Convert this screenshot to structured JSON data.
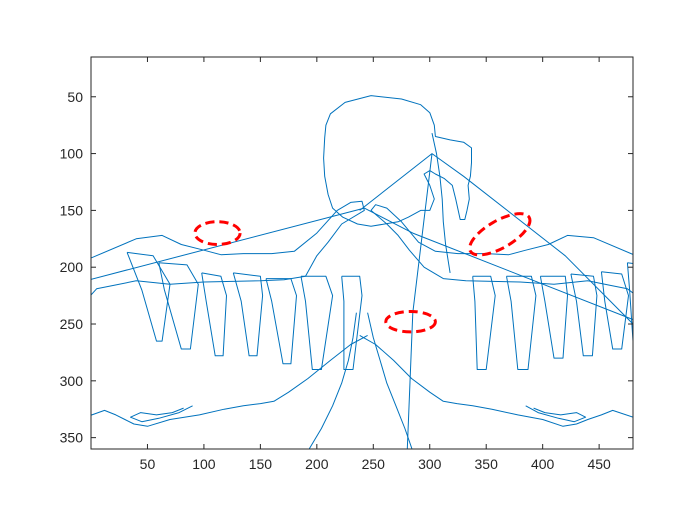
{
  "chart_data": {
    "type": "line",
    "title": "",
    "xlabel": "",
    "ylabel": "",
    "xlim": [
      0,
      480
    ],
    "ylim": [
      15,
      360
    ],
    "y_reversed": true,
    "grid": false,
    "legend": "none",
    "x_ticks": [
      50,
      100,
      150,
      200,
      250,
      300,
      350,
      400,
      450
    ],
    "y_ticks": [
      50,
      100,
      150,
      200,
      250,
      300,
      350
    ],
    "colors": {
      "contour": "#0072BD",
      "annotation": "#FF0000",
      "axis": "#262626"
    },
    "series": [
      {
        "role": "head",
        "points": [
          [
            248,
            49
          ],
          [
            275,
            52
          ],
          [
            292,
            57
          ],
          [
            300,
            64
          ],
          [
            304,
            75
          ],
          [
            305,
            85
          ],
          [
            318,
            88
          ],
          [
            330,
            90
          ],
          [
            337,
            95
          ],
          [
            337,
            108
          ],
          [
            336,
            120
          ],
          [
            334,
            128
          ],
          [
            335,
            140
          ],
          [
            333,
            150
          ],
          [
            331,
            158
          ],
          [
            327,
            158
          ],
          [
            323,
            140
          ],
          [
            320,
            128
          ],
          [
            313,
            122
          ],
          [
            305,
            118
          ],
          [
            300,
            115
          ],
          [
            295,
            118
          ],
          [
            300,
            128
          ],
          [
            304,
            140
          ],
          [
            300,
            150
          ],
          [
            292,
            150
          ],
          [
            281,
            156
          ],
          [
            272,
            160
          ],
          [
            260,
            162
          ],
          [
            248,
            164
          ],
          [
            236,
            162
          ],
          [
            223,
            156
          ],
          [
            214,
            148
          ],
          [
            210,
            136
          ],
          [
            207,
            120
          ],
          [
            206,
            104
          ],
          [
            207,
            86
          ],
          [
            208,
            75
          ],
          [
            212,
            65
          ],
          [
            225,
            55
          ],
          [
            248,
            49
          ]
        ]
      },
      {
        "role": "hair-strand",
        "points": [
          [
            302,
            82
          ],
          [
            306,
            100
          ],
          [
            309,
            120
          ],
          [
            311,
            140
          ],
          [
            312,
            160
          ],
          [
            314,
            180
          ],
          [
            318,
            205
          ]
        ]
      },
      {
        "role": "left-wing",
        "points": [
          [
            -5,
            194
          ],
          [
            40,
            175
          ],
          [
            63,
            172
          ],
          [
            80,
            180
          ],
          [
            100,
            185
          ],
          [
            115,
            189
          ],
          [
            135,
            188
          ],
          [
            160,
            188
          ],
          [
            180,
            186
          ],
          [
            200,
            170
          ],
          [
            218,
            150
          ],
          [
            230,
            143
          ],
          [
            240,
            142
          ],
          [
            242,
            150
          ],
          [
            222,
            162
          ],
          [
            210,
            178
          ],
          [
            200,
            190
          ],
          [
            190,
            208
          ],
          [
            171,
            211
          ],
          [
            150,
            212
          ],
          [
            100,
            213
          ],
          [
            70,
            215
          ],
          [
            40,
            212
          ],
          [
            20,
            216
          ],
          [
            5,
            219
          ],
          [
            -5,
            230
          ]
        ]
      },
      {
        "role": "right-wing",
        "points": [
          [
            490,
            193
          ],
          [
            445,
            174
          ],
          [
            422,
            172
          ],
          [
            405,
            180
          ],
          [
            385,
            185
          ],
          [
            370,
            189
          ],
          [
            350,
            188
          ],
          [
            325,
            188
          ],
          [
            305,
            186
          ],
          [
            290,
            178
          ],
          [
            275,
            160
          ],
          [
            262,
            148
          ],
          [
            252,
            145
          ],
          [
            248,
            150
          ],
          [
            262,
            162
          ],
          [
            272,
            172
          ],
          [
            282,
            185
          ],
          [
            295,
            200
          ],
          [
            312,
            210
          ],
          [
            332,
            212
          ],
          [
            380,
            213
          ],
          [
            410,
            215
          ],
          [
            440,
            212
          ],
          [
            460,
            216
          ],
          [
            475,
            219
          ],
          [
            490,
            230
          ]
        ]
      },
      {
        "role": "left-feather",
        "points": [
          [
            32,
            187
          ],
          [
            55,
            190
          ],
          [
            70,
            215
          ],
          [
            63,
            265
          ],
          [
            58,
            265
          ],
          [
            45,
            220
          ],
          [
            32,
            187
          ]
        ]
      },
      {
        "role": "left-feather",
        "points": [
          [
            60,
            196
          ],
          [
            85,
            198
          ],
          [
            95,
            215
          ],
          [
            88,
            272
          ],
          [
            80,
            272
          ],
          [
            65,
            220
          ],
          [
            60,
            196
          ]
        ]
      },
      {
        "role": "left-feather",
        "points": [
          [
            98,
            205
          ],
          [
            115,
            208
          ],
          [
            120,
            225
          ],
          [
            117,
            278
          ],
          [
            110,
            278
          ],
          [
            102,
            230
          ],
          [
            98,
            205
          ]
        ]
      },
      {
        "role": "left-feather",
        "points": [
          [
            126,
            205
          ],
          [
            150,
            208
          ],
          [
            152,
            225
          ],
          [
            147,
            278
          ],
          [
            140,
            278
          ],
          [
            133,
            230
          ],
          [
            126,
            205
          ]
        ]
      },
      {
        "role": "left-feather",
        "points": [
          [
            155,
            210
          ],
          [
            177,
            210
          ],
          [
            182,
            225
          ],
          [
            177,
            285
          ],
          [
            170,
            285
          ],
          [
            160,
            230
          ],
          [
            155,
            210
          ]
        ]
      },
      {
        "role": "left-feather",
        "points": [
          [
            186,
            208
          ],
          [
            208,
            208
          ],
          [
            214,
            225
          ],
          [
            204,
            290
          ],
          [
            196,
            290
          ],
          [
            190,
            230
          ],
          [
            186,
            208
          ]
        ]
      },
      {
        "role": "left-feather",
        "points": [
          [
            222,
            208
          ],
          [
            238,
            208
          ],
          [
            240,
            225
          ],
          [
            232,
            290
          ],
          [
            224,
            290
          ],
          [
            224,
            230
          ],
          [
            222,
            208
          ]
        ]
      },
      {
        "role": "right-feather",
        "points": [
          [
            338,
            208
          ],
          [
            354,
            208
          ],
          [
            358,
            225
          ],
          [
            350,
            290
          ],
          [
            342,
            290
          ],
          [
            340,
            230
          ],
          [
            338,
            208
          ]
        ]
      },
      {
        "role": "right-feather",
        "points": [
          [
            368,
            208
          ],
          [
            390,
            208
          ],
          [
            394,
            225
          ],
          [
            387,
            290
          ],
          [
            378,
            290
          ],
          [
            372,
            230
          ],
          [
            368,
            208
          ]
        ]
      },
      {
        "role": "right-feather",
        "points": [
          [
            398,
            208
          ],
          [
            420,
            208
          ],
          [
            422,
            225
          ],
          [
            418,
            280
          ],
          [
            410,
            280
          ],
          [
            402,
            230
          ],
          [
            398,
            208
          ]
        ]
      },
      {
        "role": "right-feather",
        "points": [
          [
            425,
            206
          ],
          [
            445,
            208
          ],
          [
            448,
            225
          ],
          [
            444,
            278
          ],
          [
            436,
            278
          ],
          [
            430,
            230
          ],
          [
            425,
            206
          ]
        ]
      },
      {
        "role": "right-feather",
        "points": [
          [
            452,
            204
          ],
          [
            470,
            206
          ],
          [
            476,
            225
          ],
          [
            470,
            272
          ],
          [
            462,
            272
          ],
          [
            455,
            230
          ],
          [
            452,
            204
          ]
        ]
      },
      {
        "role": "right-feather",
        "points": [
          [
            475,
            196
          ],
          [
            488,
            198
          ],
          [
            490,
            215
          ],
          [
            486,
            265
          ],
          [
            480,
            265
          ],
          [
            477,
            220
          ],
          [
            475,
            196
          ]
        ]
      },
      {
        "role": "left-arm",
        "points": [
          [
            245,
            260
          ],
          [
            230,
            268
          ],
          [
            212,
            282
          ],
          [
            192,
            298
          ],
          [
            175,
            310
          ],
          [
            162,
            318
          ],
          [
            150,
            320
          ],
          [
            135,
            322
          ],
          [
            118,
            325
          ],
          [
            96,
            330
          ],
          [
            70,
            334
          ],
          [
            50,
            340
          ],
          [
            38,
            338
          ],
          [
            30,
            334
          ],
          [
            22,
            330
          ],
          [
            12,
            326
          ],
          [
            -5,
            332
          ]
        ]
      },
      {
        "role": "left-hand",
        "points": [
          [
            90,
            322
          ],
          [
            78,
            328
          ],
          [
            60,
            333
          ],
          [
            45,
            336
          ],
          [
            35,
            332
          ],
          [
            44,
            328
          ],
          [
            58,
            330
          ],
          [
            72,
            328
          ],
          [
            82,
            324
          ]
        ]
      },
      {
        "role": "right-arm",
        "points": [
          [
            238,
            260
          ],
          [
            252,
            268
          ],
          [
            268,
            282
          ],
          [
            284,
            298
          ],
          [
            300,
            310
          ],
          [
            312,
            318
          ],
          [
            324,
            320
          ],
          [
            338,
            322
          ],
          [
            355,
            325
          ],
          [
            378,
            330
          ],
          [
            400,
            334
          ],
          [
            418,
            340
          ],
          [
            430,
            338
          ],
          [
            440,
            334
          ],
          [
            452,
            330
          ],
          [
            462,
            326
          ],
          [
            480,
            332
          ]
        ]
      },
      {
        "role": "right-hand",
        "points": [
          [
            385,
            322
          ],
          [
            396,
            328
          ],
          [
            414,
            333
          ],
          [
            428,
            336
          ],
          [
            438,
            332
          ],
          [
            430,
            328
          ],
          [
            416,
            330
          ],
          [
            402,
            328
          ],
          [
            392,
            324
          ]
        ]
      },
      {
        "role": "body-left",
        "points": [
          [
            235,
            240
          ],
          [
            232,
            262
          ],
          [
            228,
            282
          ],
          [
            222,
            302
          ],
          [
            214,
            322
          ],
          [
            204,
            342
          ],
          [
            192,
            362
          ]
        ]
      },
      {
        "role": "body-right",
        "points": [
          [
            245,
            240
          ],
          [
            250,
            262
          ],
          [
            256,
            282
          ],
          [
            262,
            302
          ],
          [
            270,
            322
          ],
          [
            278,
            342
          ],
          [
            285,
            362
          ]
        ]
      },
      {
        "role": "spurious-link",
        "points": [
          [
            -5,
            212
          ],
          [
            242,
            148
          ],
          [
            285,
            170
          ],
          [
            490,
            250
          ]
        ]
      },
      {
        "role": "spurious-link",
        "points": [
          [
            238,
            150
          ],
          [
            302,
            100
          ],
          [
            330,
            120
          ],
          [
            420,
            190
          ],
          [
            490,
            260
          ]
        ]
      },
      {
        "role": "spurious-link",
        "points": [
          [
            302,
            100
          ],
          [
            285,
            240
          ],
          [
            280,
            362
          ]
        ]
      }
    ],
    "annotations": [
      {
        "shape": "dashed-ellipse",
        "center": [
          112,
          170
        ],
        "radius": [
          20,
          10
        ]
      },
      {
        "shape": "dashed-ellipse",
        "center": [
          362,
          171
        ],
        "radius": [
          30,
          12
        ],
        "rotation_deg": -30
      },
      {
        "shape": "dashed-ellipse",
        "center": [
          283,
          248
        ],
        "radius": [
          22,
          9
        ]
      }
    ]
  }
}
